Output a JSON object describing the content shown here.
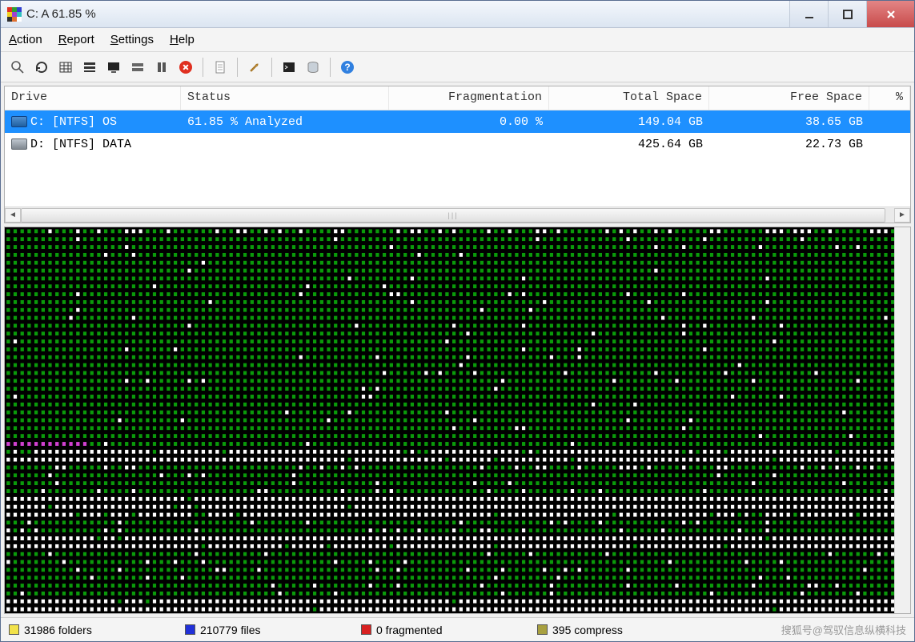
{
  "window": {
    "title": "C:  A  61.85 %"
  },
  "menu": {
    "items": [
      "Action",
      "Report",
      "Settings",
      "Help"
    ]
  },
  "toolbar": {
    "icons": [
      "search-icon",
      "refresh-icon",
      "table-icon",
      "rows-icon",
      "monitor-icon",
      "blocks-icon",
      "pause-icon",
      "stop-icon",
      "page-icon",
      "wrench-icon",
      "terminal-icon",
      "database-icon",
      "help-icon"
    ]
  },
  "drive_table": {
    "columns": [
      "Drive",
      "Status",
      "Fragmentation",
      "Total Space",
      "Free Space",
      "%"
    ],
    "rows": [
      {
        "selected": true,
        "drive": "C: [NTFS]  OS",
        "status": "61.85 % Analyzed",
        "frag": "0.00 %",
        "total": "149.04 GB",
        "free": "38.65 GB",
        "pct": ""
      },
      {
        "selected": false,
        "drive": "D: [NTFS]  DATA",
        "status": "",
        "frag": "",
        "total": "425.64 GB",
        "free": "22.73 GB",
        "pct": ""
      }
    ]
  },
  "cluster_map": {
    "cols": 130,
    "rows": 49,
    "colors": {
      "green": "#0a9a0a",
      "white": "#ffffff",
      "magenta": "#d040d0"
    },
    "cell_border": "#000000",
    "pattern_spec": {
      "comment": "row ranges → fill rule",
      "ranges": [
        {
          "from": 0,
          "to": 0,
          "base": "green",
          "white_pct": 35
        },
        {
          "from": 1,
          "to": 26,
          "base": "green",
          "white_pct": 3
        },
        {
          "from": 27,
          "to": 27,
          "base": "green",
          "white_pct": 3,
          "magenta_first": 12
        },
        {
          "from": 28,
          "to": 29,
          "base": "white",
          "green_pct": 8
        },
        {
          "from": 30,
          "to": 30,
          "base": "green",
          "white_pct": 25
        },
        {
          "from": 31,
          "to": 33,
          "base": "green",
          "white_pct": 6
        },
        {
          "from": 34,
          "to": 36,
          "base": "white",
          "green_pct": 4
        },
        {
          "from": 37,
          "to": 38,
          "base": "green",
          "white_pct": 8
        },
        {
          "from": 39,
          "to": 40,
          "base": "white",
          "green_pct": 3
        },
        {
          "from": 41,
          "to": 46,
          "base": "green",
          "white_pct": 7
        },
        {
          "from": 47,
          "to": 48,
          "base": "white",
          "green_pct": 2
        }
      ]
    }
  },
  "status": {
    "items": [
      {
        "color": "#f2e24a",
        "label": "31986 folders"
      },
      {
        "color": "#2030d8",
        "label": "210779 files"
      },
      {
        "color": "#d82020",
        "label": "0 fragmented"
      },
      {
        "color": "#a8a040",
        "label": "395 compress"
      }
    ]
  },
  "watermark": "搜狐号@驾驭信息纵横科技"
}
